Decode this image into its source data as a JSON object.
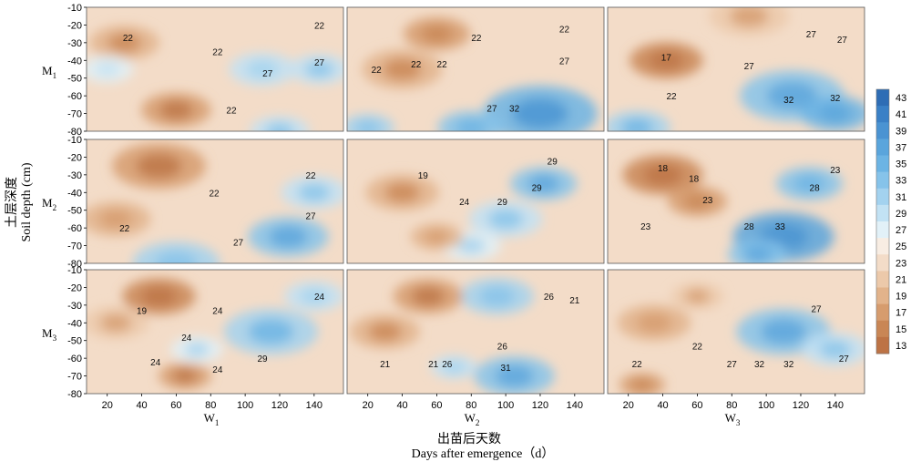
{
  "chart_data": {
    "type": "heatmap",
    "xlabel_cn": "出苗后天数",
    "xlabel_en": "Days after emergence（d）",
    "ylabel_cn": "土层深度",
    "ylabel_en": "Soil depth (cm)",
    "row_labels": [
      {
        "main": "M",
        "sub": "1"
      },
      {
        "main": "M",
        "sub": "2"
      },
      {
        "main": "M",
        "sub": "3"
      }
    ],
    "col_labels": [
      {
        "main": "W",
        "sub": "1"
      },
      {
        "main": "W",
        "sub": "2"
      },
      {
        "main": "W",
        "sub": "3"
      }
    ],
    "x_ticks": [
      "20",
      "40",
      "60",
      "80",
      "100",
      "120",
      "140"
    ],
    "x_tick_values": [
      20,
      40,
      60,
      80,
      100,
      120,
      140
    ],
    "xlim": [
      8,
      157
    ],
    "y_ticks": [
      "-10",
      "-20",
      "-30",
      "-40",
      "-50",
      "-60",
      "-70",
      "-80"
    ],
    "y_tick_values": [
      -10,
      -20,
      -30,
      -40,
      -50,
      -60,
      -70,
      -80
    ],
    "ylim": [
      -80,
      -10
    ],
    "colorbar": {
      "ticks": [
        "43",
        "41",
        "39",
        "37",
        "35",
        "33",
        "31",
        "29",
        "27",
        "25",
        "23",
        "21",
        "19",
        "17",
        "15",
        "13"
      ],
      "values": [
        43,
        41,
        39,
        37,
        35,
        33,
        31,
        29,
        27,
        25,
        23,
        21,
        19,
        17,
        15,
        13
      ],
      "colors": [
        "#2e6db5",
        "#3a80c6",
        "#4a93d2",
        "#5aa5dc",
        "#6cb4e4",
        "#86c3ea",
        "#a3d2ef",
        "#c2e2f4",
        "#e2f1f8",
        "#f8ede3",
        "#f3dcc8",
        "#ecc9aa",
        "#e2b38b",
        "#d69c6e",
        "#c98655",
        "#bd7345"
      ]
    },
    "panels": [
      {
        "row": 0,
        "col": 0,
        "base": 22,
        "blobs": [
          {
            "x": 110,
            "d": -45,
            "v": 28,
            "s": 14
          },
          {
            "x": 143,
            "d": -45,
            "v": 29,
            "s": 12
          },
          {
            "x": 60,
            "d": -68,
            "v": 16,
            "s": 15
          },
          {
            "x": 30,
            "d": -30,
            "v": 18,
            "s": 15
          },
          {
            "x": 120,
            "d": -80,
            "v": 29,
            "s": 12
          },
          {
            "x": 20,
            "d": -45,
            "v": 26,
            "s": 10
          }
        ],
        "labels": [
          {
            "t": "22",
            "x": 32,
            "d": -27
          },
          {
            "t": "22",
            "x": 84,
            "d": -35
          },
          {
            "t": "27",
            "x": 113,
            "d": -47
          },
          {
            "t": "27",
            "x": 143,
            "d": -41
          },
          {
            "t": "22",
            "x": 143,
            "d": -20
          },
          {
            "t": "22",
            "x": 92,
            "d": -68
          }
        ]
      },
      {
        "row": 0,
        "col": 1,
        "base": 22,
        "blobs": [
          {
            "x": 120,
            "d": -70,
            "v": 35,
            "s": 28
          },
          {
            "x": 80,
            "d": -78,
            "v": 32,
            "s": 14
          },
          {
            "x": 20,
            "d": -78,
            "v": 30,
            "s": 10
          },
          {
            "x": 40,
            "d": -45,
            "v": 18,
            "s": 18
          },
          {
            "x": 60,
            "d": -25,
            "v": 17,
            "s": 14
          }
        ],
        "labels": [
          {
            "t": "22",
            "x": 25,
            "d": -45
          },
          {
            "t": "22",
            "x": 48,
            "d": -42
          },
          {
            "t": "22",
            "x": 63,
            "d": -42
          },
          {
            "t": "22",
            "x": 83,
            "d": -27
          },
          {
            "t": "22",
            "x": 134,
            "d": -22
          },
          {
            "t": "27",
            "x": 134,
            "d": -40
          },
          {
            "t": "27",
            "x": 92,
            "d": -67
          },
          {
            "t": "32",
            "x": 105,
            "d": -67
          }
        ]
      },
      {
        "row": 0,
        "col": 2,
        "base": 22,
        "blobs": [
          {
            "x": 115,
            "d": -60,
            "v": 33,
            "s": 25
          },
          {
            "x": 140,
            "d": -70,
            "v": 34,
            "s": 15
          },
          {
            "x": 25,
            "d": -78,
            "v": 31,
            "s": 14
          },
          {
            "x": 42,
            "d": -40,
            "v": 15,
            "s": 16
          },
          {
            "x": 90,
            "d": -15,
            "v": 20,
            "s": 18
          }
        ],
        "labels": [
          {
            "t": "17",
            "x": 42,
            "d": -38
          },
          {
            "t": "22",
            "x": 45,
            "d": -60
          },
          {
            "t": "27",
            "x": 90,
            "d": -43
          },
          {
            "t": "32",
            "x": 113,
            "d": -62
          },
          {
            "t": "32",
            "x": 140,
            "d": -61
          },
          {
            "t": "27",
            "x": 126,
            "d": -25
          },
          {
            "t": "27",
            "x": 144,
            "d": -28
          }
        ]
      },
      {
        "row": 1,
        "col": 0,
        "base": 22,
        "blobs": [
          {
            "x": 125,
            "d": -65,
            "v": 33,
            "s": 18
          },
          {
            "x": 140,
            "d": -40,
            "v": 29,
            "s": 14
          },
          {
            "x": 60,
            "d": -80,
            "v": 30,
            "s": 20
          },
          {
            "x": 50,
            "d": -25,
            "v": 16,
            "s": 22
          },
          {
            "x": 25,
            "d": -55,
            "v": 19,
            "s": 15
          }
        ],
        "labels": [
          {
            "t": "22",
            "x": 82,
            "d": -40
          },
          {
            "t": "22",
            "x": 138,
            "d": -30
          },
          {
            "t": "27",
            "x": 138,
            "d": -53
          },
          {
            "t": "27",
            "x": 96,
            "d": -68
          },
          {
            "t": "22",
            "x": 30,
            "d": -60
          }
        ]
      },
      {
        "row": 1,
        "col": 1,
        "base": 22,
        "blobs": [
          {
            "x": 122,
            "d": -35,
            "v": 33,
            "s": 14
          },
          {
            "x": 100,
            "d": -55,
            "v": 29,
            "s": 16
          },
          {
            "x": 80,
            "d": -70,
            "v": 27,
            "s": 12
          },
          {
            "x": 40,
            "d": -40,
            "v": 18,
            "s": 16
          },
          {
            "x": 60,
            "d": -65,
            "v": 19,
            "s": 10
          }
        ],
        "labels": [
          {
            "t": "19",
            "x": 52,
            "d": -30
          },
          {
            "t": "24",
            "x": 76,
            "d": -45
          },
          {
            "t": "29",
            "x": 98,
            "d": -45
          },
          {
            "t": "29",
            "x": 118,
            "d": -37
          },
          {
            "t": "29",
            "x": 127,
            "d": -22
          }
        ]
      },
      {
        "row": 1,
        "col": 2,
        "base": 22,
        "blobs": [
          {
            "x": 110,
            "d": -65,
            "v": 36,
            "s": 24
          },
          {
            "x": 125,
            "d": -35,
            "v": 32,
            "s": 14
          },
          {
            "x": 40,
            "d": -30,
            "v": 15,
            "s": 18
          },
          {
            "x": 60,
            "d": -45,
            "v": 17,
            "s": 12
          },
          {
            "x": 95,
            "d": -75,
            "v": 33,
            "s": 12
          }
        ],
        "labels": [
          {
            "t": "18",
            "x": 40,
            "d": -26
          },
          {
            "t": "18",
            "x": 58,
            "d": -32
          },
          {
            "t": "23",
            "x": 66,
            "d": -44
          },
          {
            "t": "23",
            "x": 30,
            "d": -59
          },
          {
            "t": "28",
            "x": 90,
            "d": -59
          },
          {
            "t": "33",
            "x": 108,
            "d": -59
          },
          {
            "t": "28",
            "x": 128,
            "d": -37
          },
          {
            "t": "23",
            "x": 140,
            "d": -27
          }
        ]
      },
      {
        "row": 2,
        "col": 0,
        "base": 22,
        "blobs": [
          {
            "x": 115,
            "d": -45,
            "v": 31,
            "s": 22
          },
          {
            "x": 140,
            "d": -25,
            "v": 28,
            "s": 12
          },
          {
            "x": 72,
            "d": -55,
            "v": 27,
            "s": 10
          },
          {
            "x": 50,
            "d": -25,
            "v": 15,
            "s": 16
          },
          {
            "x": 65,
            "d": -70,
            "v": 16,
            "s": 10
          },
          {
            "x": 25,
            "d": -40,
            "v": 20,
            "s": 14
          }
        ],
        "labels": [
          {
            "t": "19",
            "x": 40,
            "d": -33
          },
          {
            "t": "24",
            "x": 84,
            "d": -33
          },
          {
            "t": "24",
            "x": 66,
            "d": -48
          },
          {
            "t": "24",
            "x": 48,
            "d": -62
          },
          {
            "t": "24",
            "x": 84,
            "d": -66
          },
          {
            "t": "29",
            "x": 110,
            "d": -60
          },
          {
            "t": "24",
            "x": 143,
            "d": -25
          }
        ]
      },
      {
        "row": 2,
        "col": 1,
        "base": 22,
        "blobs": [
          {
            "x": 105,
            "d": -70,
            "v": 33,
            "s": 18
          },
          {
            "x": 95,
            "d": -25,
            "v": 30,
            "s": 16
          },
          {
            "x": 70,
            "d": -65,
            "v": 28,
            "s": 8
          },
          {
            "x": 55,
            "d": -25,
            "v": 16,
            "s": 15
          },
          {
            "x": 30,
            "d": -45,
            "v": 18,
            "s": 15
          }
        ],
        "labels": [
          {
            "t": "21",
            "x": 30,
            "d": -63
          },
          {
            "t": "21",
            "x": 58,
            "d": -63
          },
          {
            "t": "26",
            "x": 66,
            "d": -63
          },
          {
            "t": "26",
            "x": 98,
            "d": -53
          },
          {
            "t": "31",
            "x": 100,
            "d": -65
          },
          {
            "t": "26",
            "x": 125,
            "d": -25
          },
          {
            "t": "21",
            "x": 140,
            "d": -27
          }
        ]
      },
      {
        "row": 2,
        "col": 2,
        "base": 22,
        "blobs": [
          {
            "x": 110,
            "d": -45,
            "v": 33,
            "s": 22
          },
          {
            "x": 140,
            "d": -55,
            "v": 29,
            "s": 14
          },
          {
            "x": 35,
            "d": -40,
            "v": 19,
            "s": 16
          },
          {
            "x": 28,
            "d": -75,
            "v": 17,
            "s": 8
          },
          {
            "x": 60,
            "d": -25,
            "v": 20,
            "s": 10
          }
        ],
        "labels": [
          {
            "t": "22",
            "x": 25,
            "d": -63
          },
          {
            "t": "22",
            "x": 60,
            "d": -53
          },
          {
            "t": "27",
            "x": 80,
            "d": -63
          },
          {
            "t": "32",
            "x": 96,
            "d": -63
          },
          {
            "t": "32",
            "x": 113,
            "d": -63
          },
          {
            "t": "27",
            "x": 129,
            "d": -32
          },
          {
            "t": "27",
            "x": 145,
            "d": -60
          }
        ]
      }
    ]
  }
}
